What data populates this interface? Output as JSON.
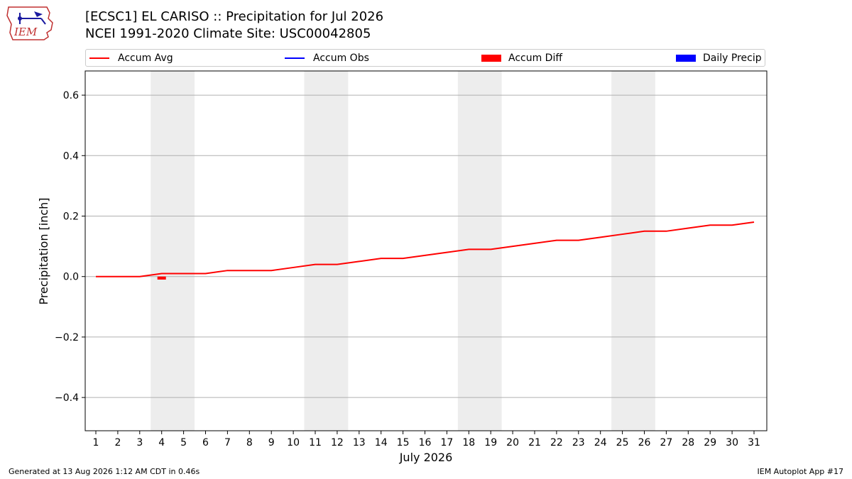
{
  "header": {
    "title_line1": "[ECSC1] EL CARISO :: Precipitation for Jul 2026",
    "title_line2": "NCEI 1991-2020 Climate Site: USC00042805"
  },
  "logo": {
    "text": "IEM",
    "icon": "iem-logo-icon"
  },
  "legend": {
    "items": [
      {
        "label": "Accum Avg",
        "color": "#ff0000",
        "kind": "line"
      },
      {
        "label": "Accum Obs",
        "color": "#0000ff",
        "kind": "line"
      },
      {
        "label": "Accum Diff",
        "color": "#ff0000",
        "kind": "bar"
      },
      {
        "label": "Daily Precip",
        "color": "#0000ff",
        "kind": "bar"
      }
    ]
  },
  "chart_data": {
    "type": "line",
    "xlabel": "July 2026",
    "ylabel": "Precipitation [inch]",
    "ylim": [
      -0.51,
      0.68
    ],
    "yticks": [
      -0.4,
      -0.2,
      0.0,
      0.2,
      0.4,
      0.6
    ],
    "ytick_labels": [
      "−0.4",
      "−0.2",
      "0.0",
      "0.2",
      "0.4",
      "0.6"
    ],
    "grid": "horizontal",
    "x": [
      1,
      2,
      3,
      4,
      5,
      6,
      7,
      8,
      9,
      10,
      11,
      12,
      13,
      14,
      15,
      16,
      17,
      18,
      19,
      20,
      21,
      22,
      23,
      24,
      25,
      26,
      27,
      28,
      29,
      30,
      31
    ],
    "weekend_shading": [
      [
        4,
        5
      ],
      [
        11,
        12
      ],
      [
        18,
        19
      ],
      [
        25,
        26
      ]
    ],
    "series": [
      {
        "name": "Accum Avg",
        "color": "#ff0000",
        "values": [
          0.0,
          0.0,
          0.0,
          0.01,
          0.01,
          0.01,
          0.02,
          0.02,
          0.02,
          0.03,
          0.04,
          0.04,
          0.05,
          0.06,
          0.06,
          0.07,
          0.08,
          0.09,
          0.09,
          0.1,
          0.11,
          0.12,
          0.12,
          0.13,
          0.14,
          0.15,
          0.15,
          0.16,
          0.17,
          0.17,
          0.18
        ]
      },
      {
        "name": "Accum Diff",
        "color": "#ff0000",
        "type": "bar",
        "points": [
          {
            "x": 4,
            "value": -0.01
          }
        ]
      }
    ],
    "shading_color": "#ededed",
    "grid_color": "#b0b0b0"
  },
  "footer": {
    "left": "Generated at 13 Aug 2026 1:12 AM CDT in 0.46s",
    "right": "IEM Autoplot App #17"
  }
}
